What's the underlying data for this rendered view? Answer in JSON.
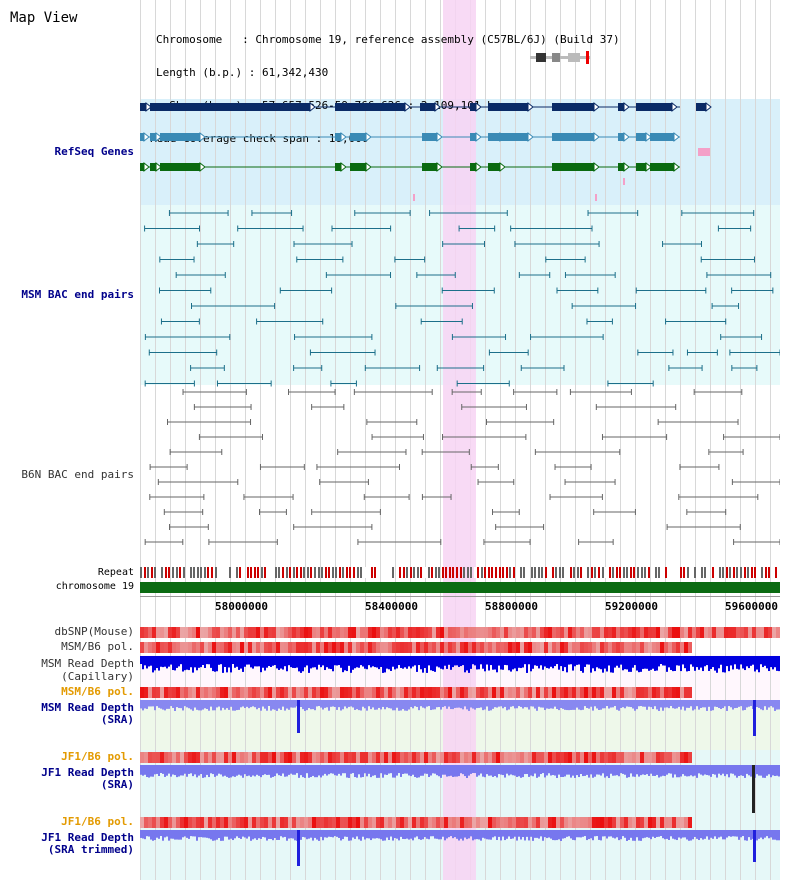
{
  "title": "Map View",
  "header": {
    "line1": "Chromosome   : Chromosome 19, reference assembly (C57BL/6J) (Build 37)",
    "line2": "Length (b.p.) : 61,342,430",
    "line3": "  Show (b.p.) : 57,657,526-59,766,626 : 2,109,101 bp",
    "line4": "Read coverage check span : 10,000"
  },
  "tracks": {
    "refseq": "RefSeq Genes",
    "msm_bac": "MSM BAC end pairs",
    "b6n_bac": "B6N BAC end pairs",
    "repeat": "Repeat",
    "chromosome": "chromosome 19",
    "dbsnp": "dbSNP(Mouse)",
    "msm_b6_pol": "MSM/B6 pol.",
    "msm_depth_cap_1": "MSM Read Depth",
    "msm_depth_cap_2": "(Capillary)",
    "msm_b6_pol2": "MSM/B6 pol.",
    "msm_depth_sra_1": "MSM Read Depth",
    "msm_depth_sra_2": "(SRA)",
    "jf1_b6_pol": "JF1/B6 pol.",
    "jf1_depth_sra_1": "JF1 Read Depth",
    "jf1_depth_sra_2": "(SRA)",
    "jf1_b6_pol2": "JF1/B6 pol.",
    "jf1_depth_trim_1": "JF1 Read Depth",
    "jf1_depth_trim_2": "(SRA trimmed)"
  },
  "axis_ticks": [
    "58000000",
    "58400000",
    "58800000",
    "59200000",
    "59600000"
  ],
  "colors": {
    "refseq_bg": "#d9f0fa",
    "bac_bg": "#e8fafa",
    "highlight": "#f7d3f3",
    "chromosome": "#0b6b12",
    "depth_blue": "#0000ee",
    "depth_light": "#8080ff"
  }
}
